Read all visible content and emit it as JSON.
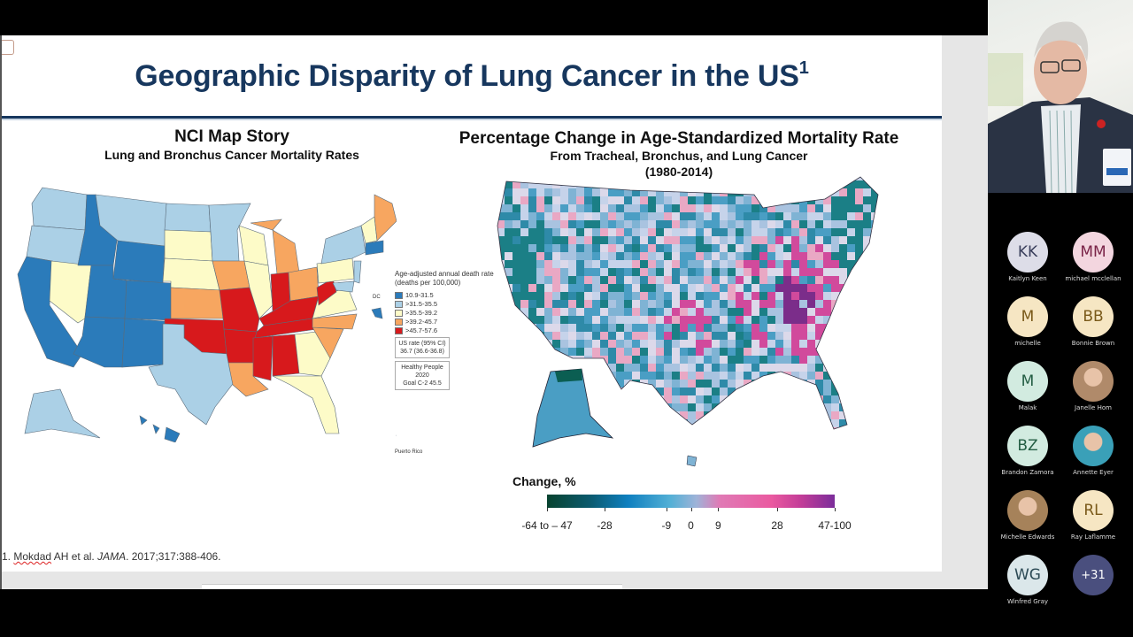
{
  "slide": {
    "title": "Geographic Disparity of Lung Cancer in the US",
    "title_superscript": "1",
    "left_panel": {
      "heading": "NCI Map Story",
      "subheading": "Lung and Bronchus Cancer Mortality Rates",
      "legend": {
        "title": "Age-adjusted annual death rate (deaths per 100,000)",
        "items": [
          {
            "label": "10.9-31.5",
            "color": "#2b7bba"
          },
          {
            "label": ">31.5-35.5",
            "color": "#abd0e6"
          },
          {
            "label": ">35.5-39.2",
            "color": "#fdfbc8"
          },
          {
            "label": ">39.2-45.7",
            "color": "#f7a660"
          },
          {
            "label": ">45.7-57.6",
            "color": "#d7191c"
          }
        ],
        "us_rate_label": "US rate (95% CI)",
        "us_rate_value": "36.7 (36.6-36.8)",
        "healthy_people_line1": "Healthy People",
        "healthy_people_line2": "2020",
        "healthy_people_line3": "Goal C-2 45.5"
      },
      "dc_label": "DC",
      "pr_label": "Puerto Rico"
    },
    "right_panel": {
      "heading": "Percentage Change in Age-Standardized Mortality Rate",
      "subheading": "From Tracheal, Bronchus, and Lung Cancer",
      "years": "(1980-2014)",
      "colorbar": {
        "title": "Change, %",
        "ticks": [
          "-64 to – 47",
          "-28",
          "-9",
          "0",
          "9",
          "28",
          "47-100"
        ]
      }
    },
    "footnote": {
      "number": "1. ",
      "author": "Mokdad",
      "rest": " AH et al. ",
      "journal": "JAMA",
      "citation": ". 2017;317:388-406."
    }
  },
  "meeting": {
    "participants": [
      {
        "initials": "KK",
        "name": "Kaitlyn Keen",
        "bg": "#dddde8",
        "fg": "#3a3f5c"
      },
      {
        "initials": "MM",
        "name": "michael mcclellan",
        "bg": "#f3d6df",
        "fg": "#7a2448"
      },
      {
        "initials": "M",
        "name": "michelle",
        "bg": "#f6e6c3",
        "fg": "#7a5a1a"
      },
      {
        "initials": "BB",
        "name": "Bonnie Brown",
        "bg": "#f6e6c3",
        "fg": "#7a5a1a"
      },
      {
        "initials": "M",
        "name": "Malak",
        "bg": "#d2ebe0",
        "fg": "#245e44"
      },
      {
        "initials": "",
        "name": "Janelle Hom",
        "bg": "#b08a6a",
        "fg": "#fff",
        "photo": true
      },
      {
        "initials": "BZ",
        "name": "Brandon Zamora",
        "bg": "#d2ebe0",
        "fg": "#245e44"
      },
      {
        "initials": "",
        "name": "Annette Eyer",
        "bg": "#3aa0b8",
        "fg": "#fff",
        "photo": true
      },
      {
        "initials": "",
        "name": "Michelle Edwards",
        "bg": "#a6825a",
        "fg": "#fff",
        "photo": true
      },
      {
        "initials": "RL",
        "name": "Ray Laflamme",
        "bg": "#f6e6c3",
        "fg": "#7a5a1a"
      },
      {
        "initials": "WG",
        "name": "Winfred Gray",
        "bg": "#dbe7ea",
        "fg": "#2c4a55"
      },
      {
        "initials": "+31",
        "name": "",
        "bg": "#4a4f7e",
        "fg": "#ffffff"
      }
    ]
  }
}
